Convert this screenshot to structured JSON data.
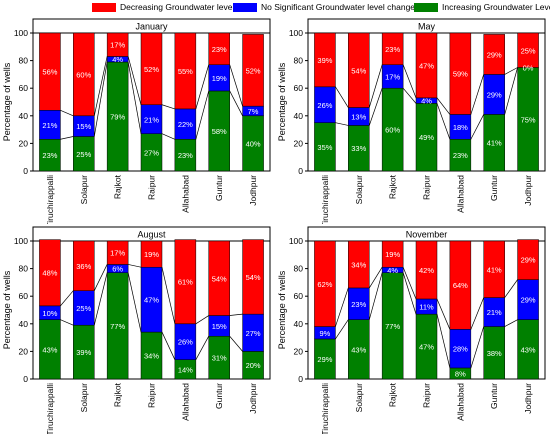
{
  "legend": [
    {
      "name": "Decreasing Groundwater level",
      "color": "#ff0000"
    },
    {
      "name": "No Significant Groundwater level change",
      "color": "#0000ff"
    },
    {
      "name": "Increasing Groundwater Level",
      "color": "#008000"
    }
  ],
  "chart_data": [
    {
      "type": "bar",
      "stacked": true,
      "title": "January",
      "ylabel": "Percentage of wells",
      "xlabel": "",
      "ylim": [
        0,
        100
      ],
      "yticks": [
        0,
        20,
        40,
        60,
        80,
        100
      ],
      "categories": [
        "Tiruchirappalli",
        "Solapur",
        "Rajkot",
        "Raipur",
        "Allahabad",
        "Guntur",
        "Jodhpur"
      ],
      "series": [
        {
          "name": "Increasing Groundwater Level",
          "color": "#008000",
          "values": [
            23,
            25,
            79,
            27,
            23,
            58,
            40
          ]
        },
        {
          "name": "No Significant Groundwater level change",
          "color": "#0000ff",
          "values": [
            21,
            15,
            4,
            21,
            22,
            19,
            7
          ]
        },
        {
          "name": "Decreasing Groundwater level",
          "color": "#ff0000",
          "values": [
            56,
            60,
            17,
            52,
            55,
            23,
            52
          ]
        }
      ]
    },
    {
      "type": "bar",
      "stacked": true,
      "title": "May",
      "ylabel": "Percentage of wells",
      "xlabel": "",
      "ylim": [
        0,
        100
      ],
      "yticks": [
        0,
        20,
        40,
        60,
        80,
        100
      ],
      "categories": [
        "Tiruchirappalli",
        "Solapur",
        "Rajkot",
        "Raipur",
        "Allahabad",
        "Guntur",
        "Jodhpur"
      ],
      "series": [
        {
          "name": "Increasing Groundwater Level",
          "color": "#008000",
          "values": [
            35,
            33,
            60,
            49,
            23,
            41,
            75
          ]
        },
        {
          "name": "No Significant Groundwater level change",
          "color": "#0000ff",
          "values": [
            26,
            13,
            17,
            4,
            18,
            29,
            0
          ]
        },
        {
          "name": "Decreasing Groundwater level",
          "color": "#ff0000",
          "values": [
            39,
            54,
            23,
            47,
            59,
            29,
            25
          ]
        }
      ]
    },
    {
      "type": "bar",
      "stacked": true,
      "title": "August",
      "ylabel": "Percentage of wells",
      "xlabel": "",
      "ylim": [
        0,
        100
      ],
      "yticks": [
        0,
        20,
        40,
        60,
        80,
        100
      ],
      "categories": [
        "Tiruchirappalli",
        "Solapur",
        "Rajkot",
        "Raipur",
        "Allahabad",
        "Guntur",
        "Jodhpur"
      ],
      "series": [
        {
          "name": "Increasing Groundwater Level",
          "color": "#008000",
          "values": [
            43,
            39,
            77,
            34,
            14,
            31,
            20
          ]
        },
        {
          "name": "No Significant Groundwater level change",
          "color": "#0000ff",
          "values": [
            10,
            25,
            6,
            47,
            26,
            15,
            27
          ]
        },
        {
          "name": "Decreasing Groundwater level",
          "color": "#ff0000",
          "values": [
            48,
            36,
            17,
            19,
            61,
            54,
            54
          ]
        }
      ]
    },
    {
      "type": "bar",
      "stacked": true,
      "title": "November",
      "ylabel": "Percentage of wells",
      "xlabel": "",
      "ylim": [
        0,
        100
      ],
      "yticks": [
        0,
        20,
        40,
        60,
        80,
        100
      ],
      "categories": [
        "Tiruchirappalli",
        "Solapur",
        "Rajkot",
        "Raipur",
        "Allahabad",
        "Guntur",
        "Jodhpur"
      ],
      "series": [
        {
          "name": "Increasing Groundwater Level",
          "color": "#008000",
          "values": [
            29,
            43,
            77,
            47,
            8,
            38,
            43
          ]
        },
        {
          "name": "No Significant Groundwater level change",
          "color": "#0000ff",
          "values": [
            9,
            23,
            4,
            11,
            28,
            21,
            29
          ]
        },
        {
          "name": "Decreasing Groundwater level",
          "color": "#ff0000",
          "values": [
            62,
            34,
            19,
            42,
            64,
            41,
            29
          ]
        }
      ]
    }
  ]
}
